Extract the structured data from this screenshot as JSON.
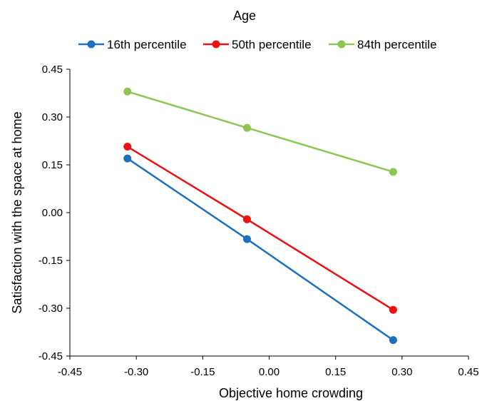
{
  "chart_data": {
    "type": "line",
    "title": "Age",
    "xlabel": "Objective home crowding",
    "ylabel": "Satisfaction with the space at home",
    "xlim": [
      -0.45,
      0.45
    ],
    "ylim": [
      -0.45,
      0.45
    ],
    "xticks": [
      "-0.45",
      "-0.30",
      "-0.15",
      "0.00",
      "0.15",
      "0.30",
      "0.45"
    ],
    "yticks": [
      "0.45",
      "0.30",
      "0.15",
      "0.00",
      "-0.15",
      "-0.30",
      "-0.45"
    ],
    "xtick_values": [
      -0.45,
      -0.3,
      -0.15,
      0.0,
      0.15,
      0.3,
      0.45
    ],
    "ytick_values": [
      0.45,
      0.3,
      0.15,
      0.0,
      -0.15,
      -0.3,
      -0.45
    ],
    "grid": false,
    "legend_position": "top",
    "x": [
      -0.32,
      -0.05,
      0.28
    ],
    "series": [
      {
        "name": "16th percentile",
        "color": "#1F6FBF",
        "values": [
          0.17,
          -0.083,
          -0.4
        ]
      },
      {
        "name": "50th percentile",
        "color": "#EE1111",
        "values": [
          0.207,
          -0.021,
          -0.305
        ]
      },
      {
        "name": "84th percentile",
        "color": "#8DC652",
        "values": [
          0.38,
          0.266,
          0.128
        ]
      }
    ]
  }
}
